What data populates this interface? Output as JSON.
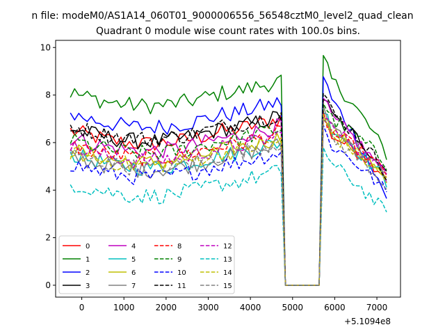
{
  "chart_data": {
    "type": "line",
    "suptitle": "n file: modeM0/AS1A14_060T01_9000006556_56548cztM0_level2_quad_clean",
    "title": "Quadrant 0 module wise count rates with 100.0s bins.",
    "xlabel": "",
    "ylabel": "",
    "x_offset_label": "+5.1094e8",
    "xlim": [
      -620,
      7560
    ],
    "ylim": [
      -0.5,
      10.3
    ],
    "xticks": [
      0,
      1000,
      2000,
      3000,
      4000,
      5000,
      6000,
      7000
    ],
    "yticks": [
      0,
      2,
      4,
      6,
      8,
      10
    ],
    "x_start": -270,
    "x_step": 100,
    "x_count": 76,
    "gap": {
      "x_from": 4830,
      "x_to": 5630,
      "value": 0
    },
    "legend": {
      "location": "lower-left",
      "columns": 4
    },
    "series": [
      {
        "name": "0",
        "color": "#ff0000",
        "dash": "solid",
        "pre": 6.5,
        "post": 7.4,
        "end": 4.6
      },
      {
        "name": "1",
        "color": "#008000",
        "dash": "solid",
        "pre": 8.1,
        "post": 9.9,
        "end": 5.5
      },
      {
        "name": "2",
        "color": "#0000ff",
        "dash": "solid",
        "pre": 7.2,
        "post": 9.2,
        "end": 3.6
      },
      {
        "name": "3",
        "color": "#000000",
        "dash": "solid",
        "pre": 6.6,
        "post": 8.3,
        "end": 4.8
      },
      {
        "name": "4",
        "color": "#bf00bf",
        "dash": "solid",
        "pre": 6.2,
        "post": 8.2,
        "end": 4.6
      },
      {
        "name": "5",
        "color": "#00bfbf",
        "dash": "solid",
        "pre": 5.5,
        "post": 7.8,
        "end": 4.3
      },
      {
        "name": "6",
        "color": "#bfbf00",
        "dash": "solid",
        "pre": 5.7,
        "post": 7.6,
        "end": 4.4
      },
      {
        "name": "7",
        "color": "#808080",
        "dash": "solid",
        "pre": 5.4,
        "post": 7.9,
        "end": 4.5
      },
      {
        "name": "8",
        "color": "#ff0000",
        "dash": "dashed",
        "pre": 5.9,
        "post": 7.5,
        "end": 4.7
      },
      {
        "name": "9",
        "color": "#008000",
        "dash": "dashed",
        "pre": 6.1,
        "post": 8.1,
        "end": 5.1
      },
      {
        "name": "10",
        "color": "#0000ff",
        "dash": "dashed",
        "pre": 5.1,
        "post": 7.0,
        "end": 3.9
      },
      {
        "name": "11",
        "color": "#000000",
        "dash": "dashed",
        "pre": 6.7,
        "post": 8.5,
        "end": 4.7
      },
      {
        "name": "12",
        "color": "#bf00bf",
        "dash": "dashed",
        "pre": 5.8,
        "post": 7.7,
        "end": 4.6
      },
      {
        "name": "13",
        "color": "#00bfbf",
        "dash": "dashed",
        "pre": 4.3,
        "post": 6.2,
        "end": 3.0
      },
      {
        "name": "14",
        "color": "#bfbf00",
        "dash": "dashed",
        "pre": 5.6,
        "post": 7.4,
        "end": 4.4
      },
      {
        "name": "15",
        "color": "#808080",
        "dash": "dashed",
        "pre": 5.5,
        "post": 7.3,
        "end": 4.2
      }
    ]
  }
}
